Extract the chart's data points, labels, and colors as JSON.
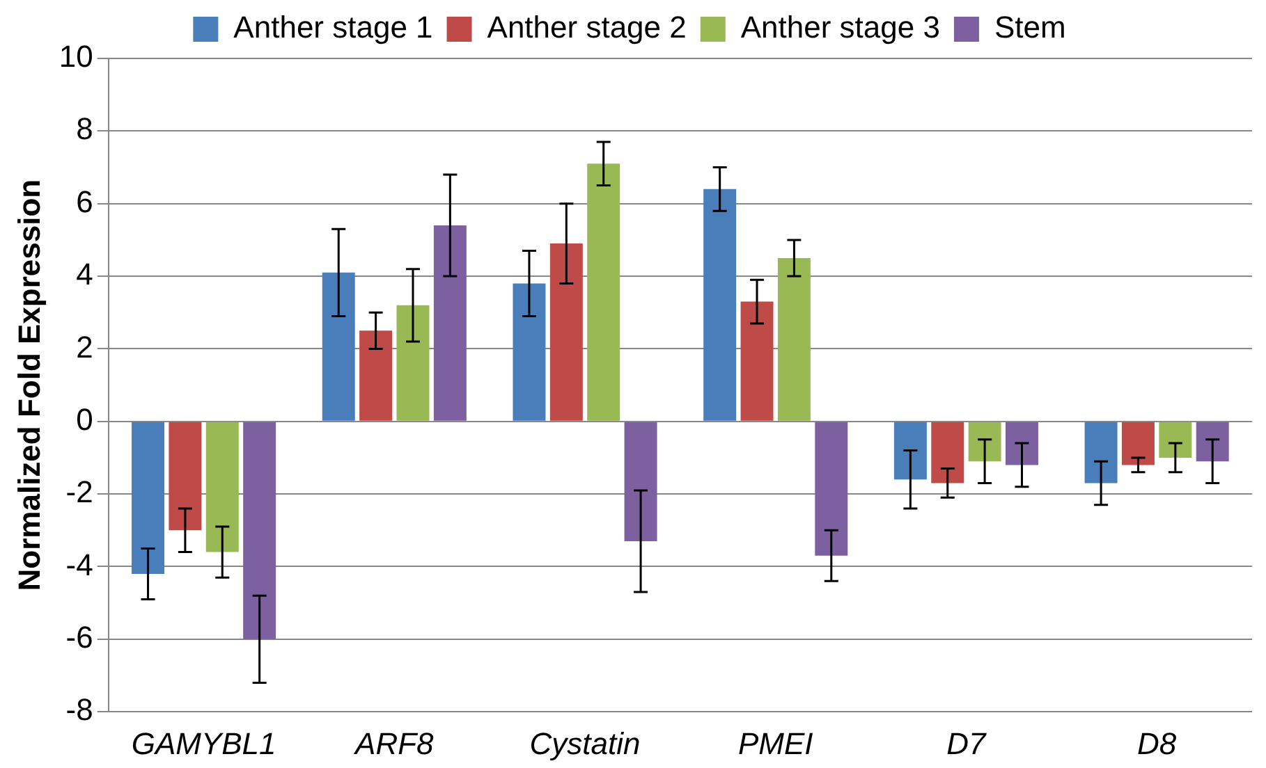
{
  "chart_data": {
    "type": "bar",
    "ylabel": "Normalized Fold Expression",
    "categories": [
      "GAMYBL1",
      "ARF8",
      "Cystatin",
      "PMEI",
      "D7",
      "D8"
    ],
    "series": [
      {
        "name": "Anther stage 1",
        "color": "#4a7ebb",
        "values": [
          -4.2,
          4.1,
          3.8,
          6.4,
          -1.6,
          -1.7
        ],
        "errors": [
          0.7,
          1.2,
          0.9,
          0.6,
          0.8,
          0.6
        ]
      },
      {
        "name": "Anther stage 2",
        "color": "#be4b48",
        "values": [
          -3,
          2.5,
          4.9,
          3.3,
          -1.7,
          -1.2
        ],
        "errors": [
          0.6,
          0.5,
          1.1,
          0.6,
          0.4,
          0.2
        ]
      },
      {
        "name": "Anther stage 3",
        "color": "#98b954",
        "values": [
          -3.6,
          3.2,
          7.1,
          4.5,
          -1.1,
          -1.0
        ],
        "errors": [
          0.7,
          1.0,
          0.6,
          0.5,
          0.6,
          0.4
        ]
      },
      {
        "name": "Stem",
        "color": "#7d60a0",
        "values": [
          -6,
          5.4,
          -3.3,
          -3.7,
          -1.2,
          -1.1
        ],
        "errors": [
          1.2,
          1.4,
          1.4,
          0.7,
          0.6,
          0.6
        ]
      }
    ],
    "ylim": [
      -8,
      10
    ],
    "yticks": [
      -8,
      -6,
      -4,
      -2,
      0,
      2,
      4,
      6,
      8,
      10
    ],
    "grid": "y",
    "legend": "top"
  }
}
